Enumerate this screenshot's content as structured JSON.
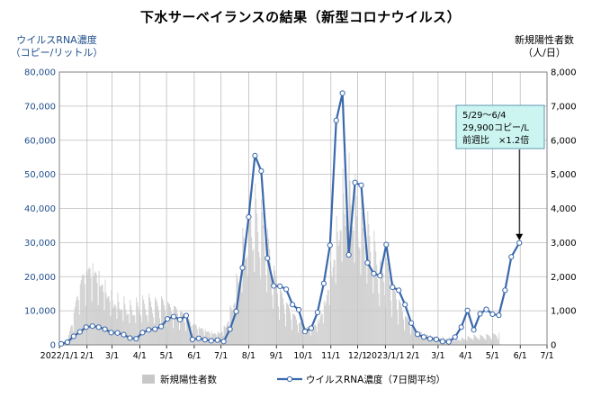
{
  "chart_data": {
    "type": "line",
    "title": "下水サーベイランスの結果（新型コロナウイルス）",
    "left_axis": {
      "label_line1": "ウイルスRNA濃度",
      "label_line2": "（コピー/リットル）",
      "ylim": [
        0,
        80000
      ],
      "ticks": [
        "0",
        "10,000",
        "20,000",
        "30,000",
        "40,000",
        "50,000",
        "60,000",
        "70,000",
        "80,000"
      ]
    },
    "right_axis": {
      "label_line1": "新規陽性者数",
      "label_line2": "（人/日）",
      "ylim": [
        0,
        8000
      ],
      "ticks": [
        "0",
        "1,000",
        "2,000",
        "3,000",
        "4,000",
        "5,000",
        "6,000",
        "7,000",
        "8,000"
      ]
    },
    "x_axis": {
      "start": "2022-01-01",
      "end": "2023-07-01",
      "tick_labels": [
        "2022/1/1",
        "2/1",
        "3/1",
        "4/1",
        "5/1",
        "6/1",
        "7/1",
        "8/1",
        "9/1",
        "10/1",
        "11/1",
        "12/1",
        "2023/1/1",
        "2/1",
        "3/1",
        "4/1",
        "5/1",
        "6/1",
        "7/1"
      ]
    },
    "grid": true,
    "legend_position": "bottom",
    "series": [
      {
        "name": "ウイルスRNA濃度（7日間平均）",
        "kind": "line",
        "axis": "left",
        "color": "#3a68ad",
        "points": [
          [
            "2022-01-03",
            300
          ],
          [
            "2022-01-10",
            800
          ],
          [
            "2022-01-17",
            2500
          ],
          [
            "2022-01-24",
            3800
          ],
          [
            "2022-01-31",
            5200
          ],
          [
            "2022-02-07",
            5500
          ],
          [
            "2022-02-14",
            5200
          ],
          [
            "2022-02-21",
            4600
          ],
          [
            "2022-02-28",
            3600
          ],
          [
            "2022-03-07",
            3500
          ],
          [
            "2022-03-14",
            3000
          ],
          [
            "2022-03-21",
            2000
          ],
          [
            "2022-03-28",
            1800
          ],
          [
            "2022-04-04",
            3600
          ],
          [
            "2022-04-11",
            4400
          ],
          [
            "2022-04-18",
            4600
          ],
          [
            "2022-04-25",
            5400
          ],
          [
            "2022-05-02",
            7600
          ],
          [
            "2022-05-09",
            8300
          ],
          [
            "2022-05-16",
            7400
          ],
          [
            "2022-05-23",
            8600
          ],
          [
            "2022-05-30",
            1600
          ],
          [
            "2022-06-06",
            1900
          ],
          [
            "2022-06-13",
            1500
          ],
          [
            "2022-06-20",
            1200
          ],
          [
            "2022-06-27",
            1400
          ],
          [
            "2022-07-04",
            1000
          ],
          [
            "2022-07-11",
            4600
          ],
          [
            "2022-07-18",
            9800
          ],
          [
            "2022-07-25",
            22600
          ],
          [
            "2022-08-01",
            37500
          ],
          [
            "2022-08-08",
            55500
          ],
          [
            "2022-08-15",
            51000
          ],
          [
            "2022-08-22",
            25400
          ],
          [
            "2022-08-29",
            17300
          ],
          [
            "2022-09-05",
            17200
          ],
          [
            "2022-09-12",
            16300
          ],
          [
            "2022-09-19",
            11800
          ],
          [
            "2022-09-26",
            10300
          ],
          [
            "2022-10-03",
            3900
          ],
          [
            "2022-10-10",
            4900
          ],
          [
            "2022-10-17",
            9500
          ],
          [
            "2022-10-24",
            18000
          ],
          [
            "2022-10-31",
            29200
          ],
          [
            "2022-11-07",
            65800
          ],
          [
            "2022-11-14",
            73800
          ],
          [
            "2022-11-21",
            26400
          ],
          [
            "2022-11-28",
            47600
          ],
          [
            "2022-12-05",
            46800
          ],
          [
            "2022-12-12",
            24100
          ],
          [
            "2022-12-19",
            20900
          ],
          [
            "2022-12-26",
            20300
          ],
          [
            "2023-01-02",
            29400
          ],
          [
            "2023-01-09",
            16900
          ],
          [
            "2023-01-16",
            16000
          ],
          [
            "2023-01-23",
            11800
          ],
          [
            "2023-01-30",
            6400
          ],
          [
            "2023-02-06",
            3100
          ],
          [
            "2023-02-13",
            2300
          ],
          [
            "2023-02-20",
            1800
          ],
          [
            "2023-02-27",
            1600
          ],
          [
            "2023-03-06",
            1000
          ],
          [
            "2023-03-13",
            900
          ],
          [
            "2023-03-20",
            2300
          ],
          [
            "2023-03-27",
            5200
          ],
          [
            "2023-04-03",
            10100
          ],
          [
            "2023-04-10",
            4400
          ],
          [
            "2023-04-17",
            9100
          ],
          [
            "2023-04-24",
            10400
          ],
          [
            "2023-05-01",
            9000
          ],
          [
            "2023-05-08",
            8700
          ],
          [
            "2023-05-15",
            16000
          ],
          [
            "2023-05-22",
            25800
          ],
          [
            "2023-05-31",
            29900
          ]
        ]
      },
      {
        "name": "新規陽性者数",
        "kind": "bar",
        "axis": "right",
        "color": "#c8c8c8",
        "envelope": [
          [
            "2022-01-01",
            0
          ],
          [
            "2022-01-10",
            150
          ],
          [
            "2022-01-17",
            900
          ],
          [
            "2022-01-24",
            1800
          ],
          [
            "2022-01-31",
            2100
          ],
          [
            "2022-02-07",
            2200
          ],
          [
            "2022-02-14",
            1900
          ],
          [
            "2022-02-21",
            1600
          ],
          [
            "2022-02-28",
            1300
          ],
          [
            "2022-03-07",
            1200
          ],
          [
            "2022-03-14",
            1100
          ],
          [
            "2022-03-21",
            1000
          ],
          [
            "2022-03-28",
            1050
          ],
          [
            "2022-04-04",
            1100
          ],
          [
            "2022-04-11",
            1150
          ],
          [
            "2022-04-18",
            1100
          ],
          [
            "2022-04-25",
            1150
          ],
          [
            "2022-05-02",
            1050
          ],
          [
            "2022-05-09",
            1000
          ],
          [
            "2022-05-16",
            900
          ],
          [
            "2022-05-23",
            750
          ],
          [
            "2022-05-30",
            600
          ],
          [
            "2022-06-06",
            500
          ],
          [
            "2022-06-13",
            420
          ],
          [
            "2022-06-20",
            350
          ],
          [
            "2022-06-27",
            330
          ],
          [
            "2022-07-04",
            450
          ],
          [
            "2022-07-11",
            900
          ],
          [
            "2022-07-18",
            1600
          ],
          [
            "2022-07-25",
            2600
          ],
          [
            "2022-08-01",
            3400
          ],
          [
            "2022-08-08",
            3600
          ],
          [
            "2022-08-15",
            3300
          ],
          [
            "2022-08-22",
            2700
          ],
          [
            "2022-08-29",
            1900
          ],
          [
            "2022-09-05",
            1400
          ],
          [
            "2022-09-12",
            1100
          ],
          [
            "2022-09-19",
            850
          ],
          [
            "2022-09-26",
            650
          ],
          [
            "2022-10-03",
            500
          ],
          [
            "2022-10-10",
            480
          ],
          [
            "2022-10-17",
            650
          ],
          [
            "2022-10-24",
            1100
          ],
          [
            "2022-10-31",
            2000
          ],
          [
            "2022-11-07",
            3000
          ],
          [
            "2022-11-14",
            4000
          ],
          [
            "2022-11-21",
            4300
          ],
          [
            "2022-11-28",
            3800
          ],
          [
            "2022-12-05",
            3300
          ],
          [
            "2022-12-12",
            3000
          ],
          [
            "2022-12-19",
            2600
          ],
          [
            "2022-12-26",
            2000
          ],
          [
            "2023-01-02",
            2100
          ],
          [
            "2023-01-09",
            1600
          ],
          [
            "2023-01-16",
            1200
          ],
          [
            "2023-01-23",
            800
          ],
          [
            "2023-01-30",
            550
          ],
          [
            "2023-02-06",
            400
          ],
          [
            "2023-02-13",
            320
          ],
          [
            "2023-02-20",
            260
          ],
          [
            "2023-02-27",
            220
          ],
          [
            "2023-03-06",
            200
          ],
          [
            "2023-03-13",
            180
          ],
          [
            "2023-03-20",
            160
          ],
          [
            "2023-03-27",
            170
          ],
          [
            "2023-04-03",
            200
          ],
          [
            "2023-04-10",
            230
          ],
          [
            "2023-04-17",
            230
          ],
          [
            "2023-04-24",
            250
          ],
          [
            "2023-05-01",
            270
          ],
          [
            "2023-05-08",
            300
          ]
        ]
      }
    ],
    "annotation": {
      "line1": "5/29～6/4",
      "line2": "29,900コピー/L",
      "line3": "前週比　×1.2倍",
      "box_color": "#ccf5f2",
      "arrow_target": [
        "2023-05-31",
        29900
      ]
    }
  }
}
